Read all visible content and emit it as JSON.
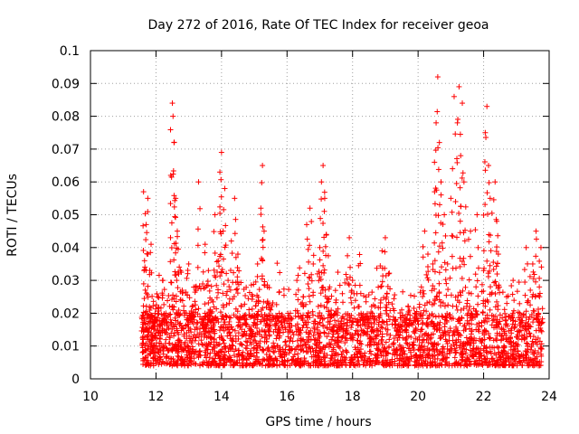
{
  "chart_data": {
    "type": "scatter",
    "title": "Day 272 of 2016, Rate Of TEC Index for receiver geoa",
    "xlabel": "GPS time / hours",
    "ylabel": "ROTI / TECUs",
    "xlim": [
      10,
      24
    ],
    "ylim": [
      0,
      0.1
    ],
    "x_ticks": [
      "10",
      "12",
      "14",
      "16",
      "18",
      "20",
      "22",
      "24"
    ],
    "y_ticks": [
      "0",
      "0.01",
      "0.02",
      "0.03",
      "0.04",
      "0.05",
      "0.06",
      "0.07",
      "0.08",
      "0.09",
      "0.1"
    ],
    "grid": true,
    "marker": "+",
    "marker_color": "#ff0000",
    "series": [
      {
        "name": "ROTI",
        "x": [
          11.6,
          11.62,
          11.65,
          11.7,
          11.72,
          11.75,
          11.8,
          11.85,
          11.9,
          11.95,
          12.05,
          12.1,
          12.2,
          12.3,
          12.45,
          12.5,
          12.52,
          12.55,
          12.6,
          12.65,
          12.75,
          12.8,
          13.0,
          13.1,
          13.2,
          13.3,
          13.4,
          13.5,
          13.6,
          13.7,
          13.8,
          13.9,
          13.95,
          14.0,
          14.05,
          14.1,
          14.2,
          14.3,
          14.4,
          14.5,
          14.6,
          14.7,
          14.9,
          15.1,
          15.2,
          15.25,
          15.3,
          15.4,
          15.5,
          15.7,
          15.9,
          16.1,
          16.3,
          16.5,
          16.6,
          16.7,
          16.8,
          17.0,
          17.05,
          17.1,
          17.15,
          17.2,
          17.3,
          17.5,
          17.7,
          17.9,
          18.0,
          18.2,
          18.4,
          18.6,
          18.9,
          19.0,
          19.1,
          19.3,
          19.5,
          19.7,
          19.9,
          20.1,
          20.2,
          20.3,
          20.45,
          20.5,
          20.55,
          20.6,
          20.65,
          20.7,
          20.8,
          20.9,
          21.0,
          21.1,
          21.2,
          21.25,
          21.3,
          21.35,
          21.4,
          21.6,
          21.8,
          22.0,
          22.05,
          22.1,
          22.15,
          22.2,
          22.35,
          22.4,
          22.45,
          22.7,
          22.9,
          23.1,
          23.3,
          23.5,
          23.6,
          23.7,
          23.75
        ],
        "y": [
          0.012,
          0.057,
          0.036,
          0.047,
          0.015,
          0.055,
          0.022,
          0.041,
          0.013,
          0.018,
          0.025,
          0.016,
          0.03,
          0.02,
          0.062,
          0.084,
          0.08,
          0.072,
          0.055,
          0.045,
          0.033,
          0.027,
          0.035,
          0.022,
          0.028,
          0.06,
          0.018,
          0.041,
          0.033,
          0.024,
          0.05,
          0.036,
          0.063,
          0.069,
          0.045,
          0.058,
          0.03,
          0.042,
          0.055,
          0.038,
          0.022,
          0.018,
          0.015,
          0.035,
          0.052,
          0.065,
          0.045,
          0.028,
          0.021,
          0.019,
          0.018,
          0.02,
          0.03,
          0.025,
          0.047,
          0.052,
          0.035,
          0.04,
          0.06,
          0.065,
          0.055,
          0.044,
          0.028,
          0.024,
          0.019,
          0.043,
          0.03,
          0.022,
          0.018,
          0.02,
          0.039,
          0.043,
          0.032,
          0.018,
          0.021,
          0.022,
          0.02,
          0.028,
          0.045,
          0.038,
          0.035,
          0.066,
          0.078,
          0.092,
          0.072,
          0.06,
          0.05,
          0.035,
          0.055,
          0.086,
          0.078,
          0.089,
          0.068,
          0.084,
          0.06,
          0.045,
          0.05,
          0.033,
          0.075,
          0.083,
          0.065,
          0.055,
          0.06,
          0.048,
          0.038,
          0.025,
          0.03,
          0.02,
          0.04,
          0.035,
          0.045,
          0.028,
          0.04
        ]
      }
    ],
    "background_band": {
      "x_start": 11.55,
      "x_end": 23.8,
      "typical_low": 0.004,
      "typical_high": 0.02
    }
  }
}
